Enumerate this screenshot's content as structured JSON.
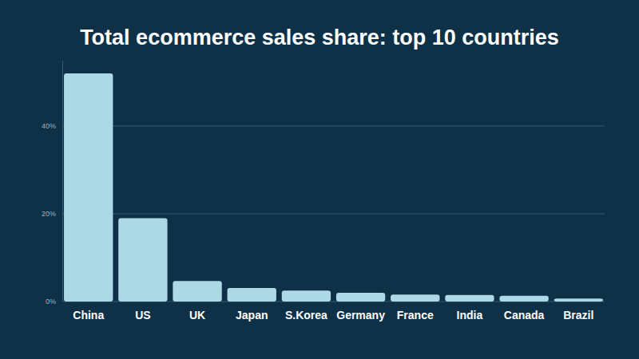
{
  "chart_data": {
    "type": "bar",
    "title": "Total ecommerce sales share: top 10 countries",
    "categories": [
      "China",
      "US",
      "UK",
      "Japan",
      "S.Korea",
      "Germany",
      "France",
      "India",
      "Canada",
      "Brazil"
    ],
    "values": [
      52,
      19,
      4.7,
      3.1,
      2.5,
      2.0,
      1.6,
      1.5,
      1.3,
      0.7
    ],
    "color": "#add8e6",
    "ylim": [
      0,
      55
    ],
    "yticks": [
      {
        "value": 0,
        "label": "0%"
      },
      {
        "value": 20,
        "label": "20%"
      },
      {
        "value": 40,
        "label": "40%"
      }
    ],
    "grid": true
  }
}
